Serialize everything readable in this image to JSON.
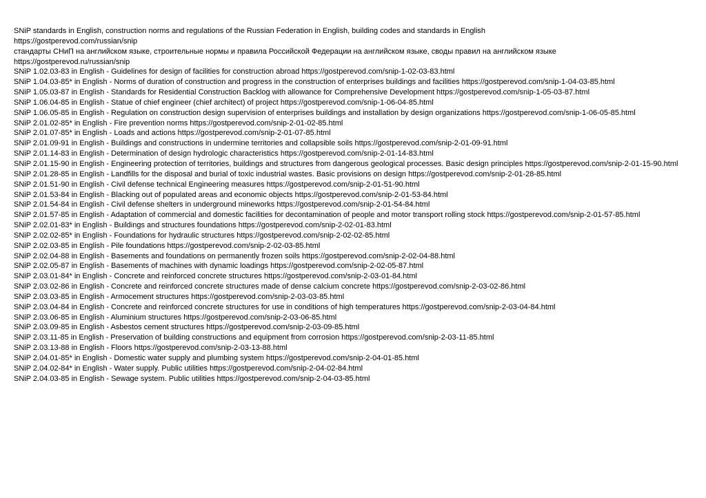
{
  "header": {
    "title_en": "SNiP standards in English, construction norms and regulations of the Russian Federation in English, building codes and standards in English",
    "url_en": "https://gostperevod.com/russian/snip",
    "title_ru": "стандарты СНиП на английском языке, строительные нормы и правила Российской Федерации на английском языке, своды правил на английском языке",
    "url_ru": "https://gostperevod.ru/russian/snip"
  },
  "items": [
    {
      "text": "SNiP 1.02.03-83 in English - Guidelines for design of facilities for construction abroad https://gostperevod.com/snip-1-02-03-83.html"
    },
    {
      "text": "SNiP 1.04.03-85* in English - Norms of duration of construction and progress in the construction of enterprises buildings and facilities https://gostperevod.com/snip-1-04-03-85.html"
    },
    {
      "text": "SNiP 1.05.03-87 in English - Standards for Residential Construction Backlog with allowance for Comprehensive Development https://gostperevod.com/snip-1-05-03-87.html"
    },
    {
      "text": "SNiP 1.06.04-85 in English - Statue of chief engineer (chief architect) of project https://gostperevod.com/snip-1-06-04-85.html"
    },
    {
      "text": "SNiP 1.06.05-85 in English - Regulation on construction design supervision of enterprises buildings and installation by design organizations https://gostperevod.com/snip-1-06-05-85.html"
    },
    {
      "text": "SNiP 2.01.02-85* in English - Fire prevention norms https://gostperevod.com/snip-2-01-02-85.html"
    },
    {
      "text": "SNiP 2.01.07-85* in English - Loads and actions https://gostperevod.com/snip-2-01-07-85.html"
    },
    {
      "text": "SNiP 2.01.09-91 in English - Buildings and constructions in undermine territories and collapsible soils https://gostperevod.com/snip-2-01-09-91.html"
    },
    {
      "text": "SNiP 2.01.14-83 in English - Determination of design hydrologic characteristics https://gostperevod.com/snip-2-01-14-83.html"
    },
    {
      "text": "SNiP 2.01.15-90 in English - Engineering protection of territories, buildings and structures from dangerous geological processes. Basic design principles https://gostperevod.com/snip-2-01-15-90.html"
    },
    {
      "text": "SNiP 2.01.28-85 in English - Landfills for the disposal and burial of toxic industrial wastes. Basic provisions on design https://gostperevod.com/snip-2-01-28-85.html"
    },
    {
      "text": "SNiP 2.01.51-90 in English - Civil defense technical Engineering measures https://gostperevod.com/snip-2-01-51-90.html"
    },
    {
      "text": "SNiP 2.01.53-84 in English - Blacking out of populated areas and economic objects https://gostperevod.com/snip-2-01-53-84.html"
    },
    {
      "text": "SNiP 2.01.54-84 in English - Civil defense shelters in underground mineworks https://gostperevod.com/snip-2-01-54-84.html"
    },
    {
      "text": "SNiP 2.01.57-85 in English - Adaptation of commercial and domestic facilities for decontamination of people and motor transport rolling stock https://gostperevod.com/snip-2-01-57-85.html"
    },
    {
      "text": "SNiP 2.02.01-83* in English - Buildings and structures foundations https://gostperevod.com/snip-2-02-01-83.html"
    },
    {
      "text": "SNiP 2.02.02-85* in English - Foundations for hydraulic structures https://gostperevod.com/snip-2-02-02-85.html"
    },
    {
      "text": "SNiP 2.02.03-85 in English - Pile foundations https://gostperevod.com/snip-2-02-03-85.html"
    },
    {
      "text": "SNiP 2.02.04-88 in English - Basements and foundations on permanently frozen soils https://gostperevod.com/snip-2-02-04-88.html"
    },
    {
      "text": "SNiP 2.02.05-87 in English - Basements of machines with dynamic loadings https://gostperevod.com/snip-2-02-05-87.html"
    },
    {
      "text": "SNiP 2.03.01-84* in English - Concrete and reinforced concrete structures https://gostperevod.com/snip-2-03-01-84.html"
    },
    {
      "text": "SNiP 2.03.02-86 in English - Concrete and reinforced concrete structures made of dense calcium concrete https://gostperevod.com/snip-2-03-02-86.html"
    },
    {
      "text": "SNiP 2.03.03-85 in English - Armocement structures https://gostperevod.com/snip-2-03-03-85.html"
    },
    {
      "text": "SNiP 2.03.04-84 in English - Concrete and reinforced concrete structures for use in conditions of high temperatures https://gostperevod.com/snip-2-03-04-84.html"
    },
    {
      "text": "SNiP 2.03.06-85 in English - Aluminium structures https://gostperevod.com/snip-2-03-06-85.html"
    },
    {
      "text": "SNiP 2.03.09-85 in English - Asbestos cement structures https://gostperevod.com/snip-2-03-09-85.html"
    },
    {
      "text": "SNiP 2.03.11-85 in English - Preservation of building constructions and equipment from corrosion https://gostperevod.com/snip-2-03-11-85.html"
    },
    {
      "text": "SNiP 2.03.13-88 in English - Floors https://gostperevod.com/snip-2-03-13-88.html"
    },
    {
      "text": "SNiP 2.04.01-85* in English - Domestic water supply and plumbing system https://gostperevod.com/snip-2-04-01-85.html"
    },
    {
      "text": "SNiP 2.04.02-84* in English - Water supply. Public utilities https://gostperevod.com/snip-2-04-02-84.html"
    },
    {
      "text": "SNiP 2.04.03-85 in English - Sewage system. Public utilities https://gostperevod.com/snip-2-04-03-85.html"
    }
  ]
}
